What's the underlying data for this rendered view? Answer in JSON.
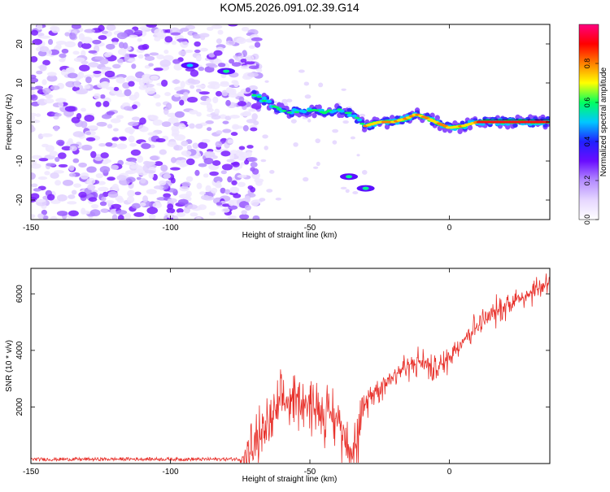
{
  "title": "KOM5.2026.091.02.39.G14",
  "chart_data": [
    {
      "type": "heatmap",
      "title": "KOM5.2026.091.02.39.G14",
      "xlabel": "Height of straight line (km)",
      "ylabel": "Frequency (Hz)",
      "xlim": [
        -150,
        36
      ],
      "ylim": [
        -25,
        25
      ],
      "x_ticks": [
        -150,
        -100,
        -50,
        0
      ],
      "y_ticks": [
        -20,
        -10,
        0,
        10,
        20
      ],
      "colorbar": {
        "label": "Normalized spectral amplitude",
        "range": [
          0.0,
          1.0
        ],
        "ticks": [
          "0.0",
          "0.2",
          "0.4",
          "0.6",
          "0.8"
        ],
        "colors": [
          "#ffffff",
          "#e6d7ff",
          "#b48cff",
          "#6a0dff",
          "#2020ff",
          "#00c8ff",
          "#00ff60",
          "#ffff00",
          "#ff8000",
          "#ff0000",
          "#ff0080"
        ]
      },
      "trace_track": [
        {
          "x": -70,
          "y": 7
        },
        {
          "x": -65,
          "y": 5
        },
        {
          "x": -60,
          "y": 3
        },
        {
          "x": -55,
          "y": 2.5
        },
        {
          "x": -50,
          "y": 3
        },
        {
          "x": -45,
          "y": 2.5
        },
        {
          "x": -40,
          "y": 3
        },
        {
          "x": -35,
          "y": 2
        },
        {
          "x": -30,
          "y": -1
        },
        {
          "x": -25,
          "y": 0
        },
        {
          "x": -20,
          "y": 0
        },
        {
          "x": -15,
          "y": 1
        },
        {
          "x": -12,
          "y": 2
        },
        {
          "x": -8,
          "y": 1
        },
        {
          "x": -5,
          "y": 0
        },
        {
          "x": 0,
          "y": -1.5
        },
        {
          "x": 5,
          "y": -1
        },
        {
          "x": 10,
          "y": 0
        },
        {
          "x": 20,
          "y": 0
        },
        {
          "x": 36,
          "y": 0
        }
      ],
      "secondary_traces": [
        {
          "x": -93,
          "y": 14.5
        },
        {
          "x": -80,
          "y": 13
        },
        {
          "x": -36,
          "y": -14
        },
        {
          "x": -30,
          "y": -17
        }
      ]
    },
    {
      "type": "line",
      "xlabel": "Height of straight line (km)",
      "ylabel": "SNR (10 * v/v)",
      "xlim": [
        -150,
        36
      ],
      "ylim": [
        0,
        6900
      ],
      "x_ticks": [
        -150,
        -100,
        -50,
        0
      ],
      "y_ticks": [
        2000,
        4000,
        6000
      ],
      "line_color": "#e8302a",
      "series": [
        {
          "name": "SNR",
          "x": [
            -150,
            -130,
            -110,
            -90,
            -75,
            -72,
            -70,
            -68,
            -66,
            -64,
            -62,
            -60,
            -58,
            -56,
            -54,
            -52,
            -50,
            -48,
            -46,
            -44,
            -42,
            -40,
            -38,
            -36,
            -34,
            -32,
            -30,
            -28,
            -26,
            -24,
            -22,
            -20,
            -18,
            -16,
            -14,
            -12,
            -10,
            -8,
            -6,
            -4,
            -2,
            0,
            4,
            8,
            12,
            16,
            20,
            24,
            28,
            32,
            36
          ],
          "values": [
            150,
            150,
            160,
            150,
            160,
            250,
            600,
            900,
            1200,
            1500,
            1800,
            2100,
            2200,
            2300,
            2350,
            2200,
            2100,
            2000,
            1900,
            1800,
            1700,
            1500,
            1200,
            800,
            500,
            1200,
            2100,
            2500,
            2600,
            2800,
            3000,
            3100,
            3300,
            3400,
            3500,
            3550,
            3600,
            3500,
            3300,
            3400,
            3550,
            3800,
            4300,
            4700,
            5000,
            5300,
            5600,
            5800,
            6000,
            6200,
            6500
          ]
        }
      ]
    }
  ]
}
